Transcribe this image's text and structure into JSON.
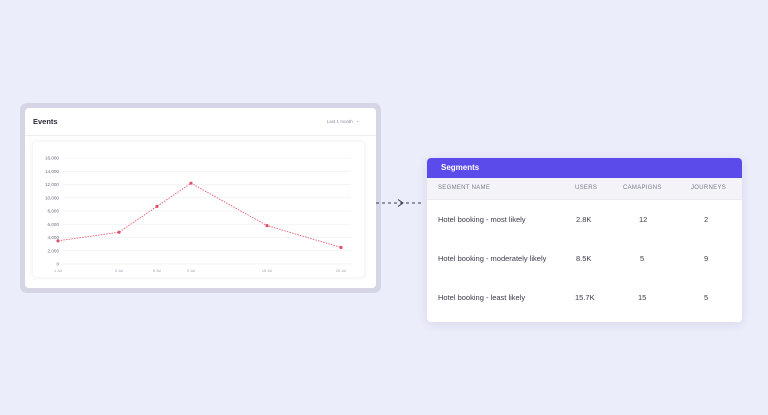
{
  "events": {
    "title": "Events",
    "range_label": "Last 1 month",
    "chart_data": {
      "type": "line",
      "x": [
        "1 Jul",
        "5 Jul",
        "8 Jul",
        "9 Jul",
        "15 Jul",
        "25 Jul"
      ],
      "values": [
        3500,
        4800,
        8700,
        12200,
        5800,
        2500
      ],
      "yticks": [
        "16,000",
        "14,000",
        "12,000",
        "10,000",
        "8,000",
        "6,000",
        "4,000",
        "2,000",
        "0"
      ],
      "ylim": [
        0,
        16000
      ],
      "grid": true,
      "line_color": "#E25C70",
      "point_color": "#E0506A"
    }
  },
  "segments": {
    "title": "Segments",
    "columns": [
      "SEGMENT NAME",
      "USERS",
      "CAMAPIGNS",
      "JOURNEYS"
    ],
    "rows": [
      {
        "name": "Hotel booking - most likely",
        "users": "2.8K",
        "campaigns": "12",
        "journeys": "2"
      },
      {
        "name": "Hotel booking - moderately likely",
        "users": "8.5K",
        "campaigns": "5",
        "journeys": "9"
      },
      {
        "name": "Hotel booking - least likely",
        "users": "15.7K",
        "campaigns": "15",
        "journeys": "5"
      }
    ]
  },
  "colors": {
    "background": "#ECEDFA",
    "accent": "#5B4BEB",
    "chart_line": "#E25C70"
  }
}
